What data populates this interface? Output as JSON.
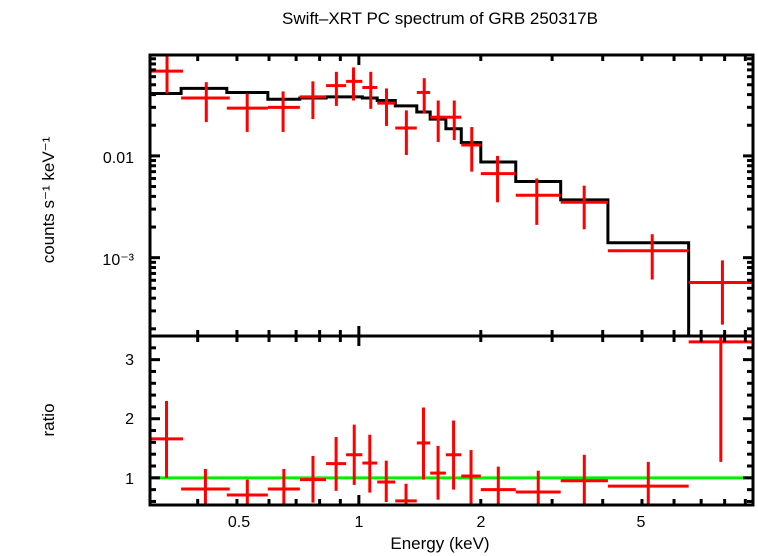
{
  "chart_data": [
    {
      "type": "scatter",
      "panel": "spectrum",
      "title": "Swift–XRT PC spectrum of GRB 250317B",
      "xlabel": "Energy (keV)",
      "ylabel": "counts s⁻¹ keV⁻¹",
      "xscale": "log",
      "yscale": "log",
      "xlim": [
        0.305,
        9.4
      ],
      "ylim": [
        0.00017,
        0.098
      ],
      "ytick_labels": [
        {
          "value": 0.01,
          "label": "0.01"
        },
        {
          "value": 0.001,
          "label": "10⁻³"
        }
      ],
      "series": [
        {
          "name": "data",
          "color": "#ff0000",
          "bins": [
            {
              "elo": 0.305,
              "ehi": 0.368,
              "x": 0.336,
              "y": 0.068,
              "ylo": 0.041,
              "yhi": 0.098
            },
            {
              "elo": 0.364,
              "ehi": 0.48,
              "x": 0.42,
              "y": 0.037,
              "ylo": 0.0215,
              "yhi": 0.053
            },
            {
              "elo": 0.472,
              "ehi": 0.596,
              "x": 0.53,
              "y": 0.0295,
              "ylo": 0.0172,
              "yhi": 0.041
            },
            {
              "elo": 0.596,
              "ehi": 0.715,
              "x": 0.65,
              "y": 0.03,
              "ylo": 0.0172,
              "yhi": 0.043
            },
            {
              "elo": 0.715,
              "ehi": 0.83,
              "x": 0.77,
              "y": 0.038,
              "ylo": 0.023,
              "yhi": 0.054
            },
            {
              "elo": 0.83,
              "ehi": 0.93,
              "x": 0.88,
              "y": 0.049,
              "ylo": 0.031,
              "yhi": 0.067
            },
            {
              "elo": 0.93,
              "ehi": 1.02,
              "x": 0.97,
              "y": 0.054,
              "ylo": 0.035,
              "yhi": 0.074
            },
            {
              "elo": 1.02,
              "ehi": 1.11,
              "x": 1.07,
              "y": 0.047,
              "ylo": 0.029,
              "yhi": 0.067
            },
            {
              "elo": 1.11,
              "ehi": 1.23,
              "x": 1.17,
              "y": 0.033,
              "ylo": 0.0197,
              "yhi": 0.046
            },
            {
              "elo": 1.23,
              "ehi": 1.39,
              "x": 1.31,
              "y": 0.0188,
              "ylo": 0.0102,
              "yhi": 0.028
            },
            {
              "elo": 1.39,
              "ehi": 1.5,
              "x": 1.45,
              "y": 0.042,
              "ylo": 0.026,
              "yhi": 0.058
            },
            {
              "elo": 1.5,
              "ehi": 1.64,
              "x": 1.57,
              "y": 0.024,
              "ylo": 0.0137,
              "yhi": 0.035
            },
            {
              "elo": 1.64,
              "ehi": 1.79,
              "x": 1.72,
              "y": 0.024,
              "ylo": 0.0143,
              "yhi": 0.035
            },
            {
              "elo": 1.79,
              "ehi": 2.0,
              "x": 1.9,
              "y": 0.0128,
              "ylo": 0.007,
              "yhi": 0.0192
            },
            {
              "elo": 2.0,
              "ehi": 2.44,
              "x": 2.2,
              "y": 0.0067,
              "ylo": 0.0035,
              "yhi": 0.01
            },
            {
              "elo": 2.44,
              "ehi": 3.15,
              "x": 2.75,
              "y": 0.0041,
              "ylo": 0.0021,
              "yhi": 0.006
            },
            {
              "elo": 3.15,
              "ehi": 4.12,
              "x": 3.6,
              "y": 0.0035,
              "ylo": 0.0019,
              "yhi": 0.0051
            },
            {
              "elo": 4.12,
              "ehi": 6.52,
              "x": 5.3,
              "y": 0.00117,
              "ylo": 0.00061,
              "yhi": 0.0017
            },
            {
              "elo": 6.52,
              "ehi": 9.4,
              "x": 7.9,
              "y": 0.00057,
              "ylo": 0.00022,
              "yhi": 0.00094
            }
          ]
        },
        {
          "name": "model",
          "color": "#000000",
          "style": "step",
          "steps": [
            {
              "elo": 0.305,
              "ehi": 0.364,
              "y": 0.041
            },
            {
              "elo": 0.364,
              "ehi": 0.472,
              "y": 0.046
            },
            {
              "elo": 0.472,
              "ehi": 0.596,
              "y": 0.042
            },
            {
              "elo": 0.596,
              "ehi": 0.715,
              "y": 0.036
            },
            {
              "elo": 0.715,
              "ehi": 0.83,
              "y": 0.037
            },
            {
              "elo": 0.83,
              "ehi": 0.93,
              "y": 0.038
            },
            {
              "elo": 0.93,
              "ehi": 1.02,
              "y": 0.038
            },
            {
              "elo": 1.02,
              "ehi": 1.11,
              "y": 0.037
            },
            {
              "elo": 1.11,
              "ehi": 1.23,
              "y": 0.035
            },
            {
              "elo": 1.23,
              "ehi": 1.39,
              "y": 0.031
            },
            {
              "elo": 1.39,
              "ehi": 1.5,
              "y": 0.027
            },
            {
              "elo": 1.5,
              "ehi": 1.64,
              "y": 0.023
            },
            {
              "elo": 1.64,
              "ehi": 1.79,
              "y": 0.0185
            },
            {
              "elo": 1.79,
              "ehi": 2.0,
              "y": 0.0135
            },
            {
              "elo": 2.0,
              "ehi": 2.44,
              "y": 0.0087
            },
            {
              "elo": 2.44,
              "ehi": 3.15,
              "y": 0.0056
            },
            {
              "elo": 3.15,
              "ehi": 4.12,
              "y": 0.0037
            },
            {
              "elo": 4.12,
              "ehi": 6.52,
              "y": 0.0014
            },
            {
              "elo": 6.52,
              "ehi": 9.4,
              "y": 0.0001
            }
          ]
        }
      ]
    },
    {
      "type": "scatter",
      "panel": "ratio",
      "xlabel": "Energy (keV)",
      "ylabel": "ratio",
      "xscale": "log",
      "yscale": "linear",
      "xlim": [
        0.305,
        9.4
      ],
      "ylim": [
        0.54,
        3.4
      ],
      "xtick_labels": [
        {
          "value": 0.5,
          "label": "0.5"
        },
        {
          "value": 1,
          "label": "1"
        },
        {
          "value": 2,
          "label": "2"
        },
        {
          "value": 5,
          "label": "5"
        }
      ],
      "ytick_labels": [
        {
          "value": 1,
          "label": "1"
        },
        {
          "value": 2,
          "label": "2"
        },
        {
          "value": 3,
          "label": "3"
        }
      ],
      "reference_line": {
        "y": 1,
        "color": "#00ee00"
      },
      "series": [
        {
          "name": "ratio",
          "color": "#ff0000",
          "bins": [
            {
              "elo": 0.305,
              "ehi": 0.368,
              "y": 1.66,
              "ylo": 1.0,
              "yhi": 2.3
            },
            {
              "elo": 0.364,
              "ehi": 0.48,
              "y": 0.81,
              "ylo": 0.54,
              "yhi": 1.15
            },
            {
              "elo": 0.472,
              "ehi": 0.596,
              "y": 0.71,
              "ylo": 0.54,
              "yhi": 0.97
            },
            {
              "elo": 0.596,
              "ehi": 0.715,
              "y": 0.81,
              "ylo": 0.54,
              "yhi": 1.15
            },
            {
              "elo": 0.715,
              "ehi": 0.83,
              "y": 0.97,
              "ylo": 0.58,
              "yhi": 1.37
            },
            {
              "elo": 0.83,
              "ehi": 0.93,
              "y": 1.24,
              "ylo": 0.78,
              "yhi": 1.69
            },
            {
              "elo": 0.93,
              "ehi": 1.02,
              "y": 1.39,
              "ylo": 0.88,
              "yhi": 1.9
            },
            {
              "elo": 1.02,
              "ehi": 1.11,
              "y": 1.25,
              "ylo": 0.75,
              "yhi": 1.73
            },
            {
              "elo": 1.11,
              "ehi": 1.23,
              "y": 0.93,
              "ylo": 0.59,
              "yhi": 1.29
            },
            {
              "elo": 1.23,
              "ehi": 1.39,
              "y": 0.61,
              "ylo": 0.54,
              "yhi": 0.9
            },
            {
              "elo": 1.39,
              "ehi": 1.5,
              "y": 1.59,
              "ylo": 0.97,
              "yhi": 2.19
            },
            {
              "elo": 1.5,
              "ehi": 1.64,
              "y": 1.08,
              "ylo": 0.63,
              "yhi": 1.54
            },
            {
              "elo": 1.64,
              "ehi": 1.79,
              "y": 1.39,
              "ylo": 0.8,
              "yhi": 1.97
            },
            {
              "elo": 1.79,
              "ehi": 2.0,
              "y": 1.03,
              "ylo": 0.54,
              "yhi": 1.47
            },
            {
              "elo": 2.0,
              "ehi": 2.44,
              "y": 0.8,
              "ylo": 0.54,
              "yhi": 1.19
            },
            {
              "elo": 2.44,
              "ehi": 3.15,
              "y": 0.76,
              "ylo": 0.54,
              "yhi": 1.12
            },
            {
              "elo": 3.15,
              "ehi": 4.12,
              "y": 0.95,
              "ylo": 0.54,
              "yhi": 1.39
            },
            {
              "elo": 4.12,
              "ehi": 6.52,
              "y": 0.86,
              "ylo": 0.54,
              "yhi": 1.27
            },
            {
              "elo": 6.52,
              "ehi": 9.4,
              "y": 3.3,
              "ylo": 1.27,
              "yhi": 3.4
            }
          ]
        }
      ]
    }
  ]
}
